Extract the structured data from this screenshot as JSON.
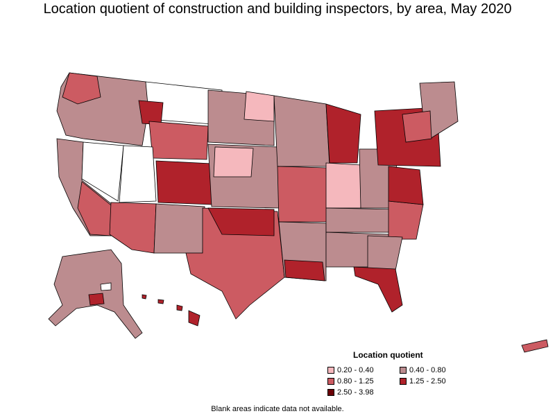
{
  "title": "Location quotient of construction and building inspectors, by area, May 2020",
  "legend": {
    "title": "Location quotient",
    "items": [
      {
        "label": "0.20 - 0.40",
        "color": "#f5b8bd"
      },
      {
        "label": "0.40 - 0.80",
        "color": "#bc8c8f"
      },
      {
        "label": "0.80 - 1.25",
        "color": "#cc5b62"
      },
      {
        "label": "1.25 - 2.50",
        "color": "#b0222b"
      },
      {
        "label": "2.50 - 3.98",
        "color": "#6b0006"
      }
    ]
  },
  "footnote": "Blank areas indicate data not available.",
  "colors": {
    "blank": "#ffffff",
    "border": "#000000"
  }
}
